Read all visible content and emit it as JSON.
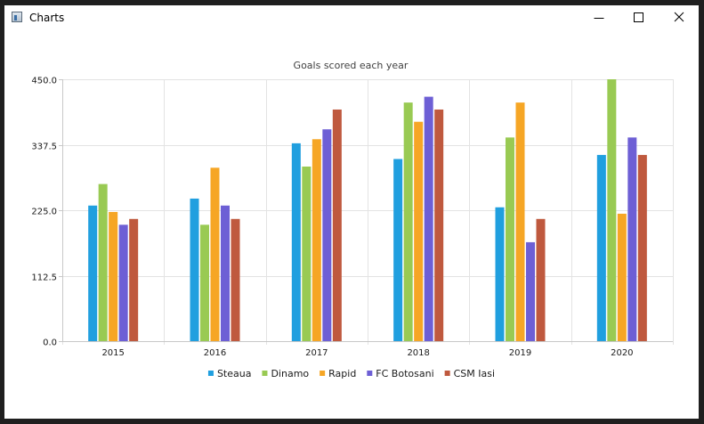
{
  "window": {
    "title": "Charts",
    "icon": "app-window-icon",
    "controls": [
      "minimize-icon",
      "maximize-icon",
      "close-icon"
    ]
  },
  "chart_data": {
    "type": "bar",
    "title": "Goals scored each year",
    "xlabel": "",
    "ylabel": "",
    "categories": [
      "2015",
      "2016",
      "2017",
      "2018",
      "2019",
      "2020"
    ],
    "ylim": [
      0,
      450
    ],
    "yticks": [
      "0.0",
      "112.5",
      "225.0",
      "337.5",
      "450.0"
    ],
    "grid": true,
    "legend_position": "bottom",
    "series": [
      {
        "name": "Steaua",
        "color": "#209fdf",
        "values": [
          233,
          245,
          340,
          313,
          230,
          320
        ]
      },
      {
        "name": "Dinamo",
        "color": "#99ca53",
        "values": [
          270,
          200,
          300,
          410,
          350,
          450
        ]
      },
      {
        "name": "Rapid",
        "color": "#f6a625",
        "values": [
          222,
          298,
          347,
          377,
          410,
          219
        ]
      },
      {
        "name": "FC Botosani",
        "color": "#6d5fd5",
        "values": [
          200,
          233,
          364,
          420,
          170,
          350
        ]
      },
      {
        "name": "CSM Iasi",
        "color": "#bf593e",
        "values": [
          210,
          210,
          398,
          398,
          210,
          320
        ]
      }
    ]
  }
}
